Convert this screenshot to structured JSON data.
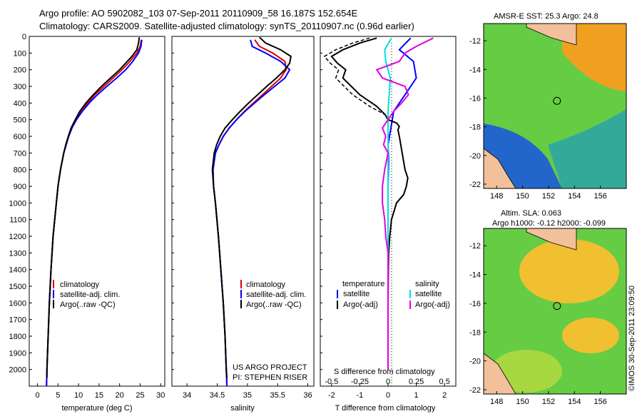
{
  "header": {
    "line1": "Argo profile: AO 5902082_103 07-Sep-2011 20110909_58 16.187S 152.654E",
    "line2": "Climatology: CARS2009. Satellite-adjusted climatology: synTS_20110907.nc (0.96d earlier)"
  },
  "maps": {
    "sst_title": "AMSR-E SST: 25.3 Argo: 24.8",
    "sla_title1": "Altim. SLA: 0.063",
    "sla_title2": "Argo h1000: -0.12 h2000: -0.099",
    "stamp": "©IMOS 30-Sep-2011 23:09:50",
    "lat_ticks": [
      "-12",
      "-14",
      "-16",
      "-18",
      "-20",
      "-22"
    ],
    "lon_ticks": [
      "148",
      "150",
      "152",
      "154",
      "156"
    ],
    "lat_values": [
      -12,
      -14,
      -16,
      -18,
      -20,
      -22
    ],
    "lon_values": [
      148,
      150,
      152,
      154,
      156
    ],
    "lat_range": [
      -22.3,
      -10.8
    ],
    "lon_range": [
      147.0,
      158.0
    ],
    "argo_position": {
      "lat": -16.187,
      "lon": 152.654
    },
    "colors": {
      "sst_warm": "#f0a020",
      "sst_mid": "#66cc44",
      "sst_cool": "#2266cc",
      "land": "#f2c09a"
    }
  },
  "credits": {
    "line1": "US ARGO PROJECT",
    "line2": "PI: STEPHEN RISER"
  },
  "colors": {
    "climatology": "#e00000",
    "satellite": "#0000ff",
    "argo": "#000000",
    "satellite_salinity": "#00e0e0",
    "argo_salinity": "#e000e0"
  },
  "legend_labels": {
    "climatology": "climatology",
    "satellite_adj": "satellite-adj. clim.",
    "argo_raw": "Argo(..raw -QC)",
    "temperature": "temperature",
    "salinity": "salinity",
    "satellite": "satellite",
    "argo_adj": "Argo(-adj)"
  },
  "chart_data": [
    {
      "type": "line",
      "id": "temperature",
      "xlabel": "temperature (deg C)",
      "ylabel": "",
      "xlim": [
        -2,
        31
      ],
      "ylim": [
        2100,
        0
      ],
      "xticks": [
        0,
        5,
        10,
        15,
        20,
        25,
        30
      ],
      "yticks": [
        0,
        100,
        200,
        300,
        400,
        500,
        600,
        700,
        800,
        900,
        1000,
        1100,
        1200,
        1300,
        1400,
        1500,
        1600,
        1700,
        1800,
        1900,
        2000
      ],
      "series": [
        {
          "name": "climatology",
          "depth": [
            20,
            60,
            100,
            150,
            200,
            250,
            300,
            350,
            400,
            450,
            500,
            550,
            600,
            650,
            700,
            800,
            900,
            1000,
            1200,
            1400,
            1600,
            1800,
            2000,
            2100
          ],
          "values": [
            25.3,
            25.0,
            24.2,
            22.5,
            20.6,
            18.4,
            16.2,
            14.0,
            12.2,
            10.6,
            9.4,
            8.4,
            7.6,
            7.0,
            6.4,
            5.6,
            5.0,
            4.6,
            3.8,
            3.3,
            2.9,
            2.6,
            2.3,
            2.2
          ]
        },
        {
          "name": "satellite-adj. clim.",
          "depth": [
            20,
            60,
            100,
            150,
            200,
            250,
            300,
            350,
            400,
            450,
            500,
            550,
            600,
            650,
            700,
            800,
            900,
            1000,
            1200,
            1400,
            1600,
            1800,
            2000,
            2100
          ],
          "values": [
            25.4,
            25.2,
            24.6,
            23.2,
            21.5,
            19.3,
            16.9,
            14.6,
            12.6,
            10.9,
            9.5,
            8.4,
            7.6,
            7.0,
            6.4,
            5.6,
            5.0,
            4.6,
            3.8,
            3.3,
            2.9,
            2.6,
            2.3,
            2.2
          ]
        },
        {
          "name": "Argo(..raw -QC)",
          "depth": [
            5,
            40,
            80,
            120,
            160,
            200,
            250,
            300,
            350,
            400,
            450,
            500,
            550,
            600,
            650,
            700,
            800,
            900,
            1000,
            1200,
            1400,
            1600,
            1800,
            2000,
            2050
          ],
          "values": [
            24.8,
            24.6,
            24.2,
            23.0,
            21.5,
            20.0,
            17.8,
            15.6,
            13.6,
            11.8,
            10.3,
            9.2,
            8.2,
            7.5,
            6.9,
            6.4,
            5.6,
            5.0,
            4.6,
            3.8,
            3.3,
            2.9,
            2.6,
            2.3,
            2.3
          ]
        }
      ]
    },
    {
      "type": "line",
      "id": "salinity",
      "xlabel": "salinity",
      "ylabel": "",
      "xlim": [
        33.75,
        36.1
      ],
      "ylim": [
        2100,
        0
      ],
      "xticks": [
        34,
        34.5,
        35,
        35.5,
        36
      ],
      "series": [
        {
          "name": "climatology",
          "depth": [
            20,
            60,
            100,
            150,
            200,
            250,
            300,
            350,
            400,
            450,
            500,
            550,
            600,
            650,
            700,
            800,
            900,
            1000,
            1200,
            1400,
            1600,
            1800,
            2000,
            2100
          ],
          "values": [
            35.12,
            35.2,
            35.42,
            35.62,
            35.64,
            35.55,
            35.4,
            35.25,
            35.1,
            34.95,
            34.82,
            34.7,
            34.6,
            34.53,
            34.47,
            34.43,
            34.44,
            34.47,
            34.52,
            34.56,
            34.6,
            34.63,
            34.65,
            34.66
          ]
        },
        {
          "name": "satellite-adj. clim.",
          "depth": [
            20,
            60,
            100,
            150,
            200,
            250,
            300,
            350,
            400,
            450,
            500,
            550,
            600,
            650,
            700,
            800,
            900,
            1000,
            1200,
            1400,
            1600,
            1800,
            2000,
            2100
          ],
          "values": [
            35.05,
            35.08,
            35.3,
            35.55,
            35.7,
            35.62,
            35.45,
            35.28,
            35.12,
            34.96,
            34.82,
            34.7,
            34.6,
            34.53,
            34.47,
            34.43,
            34.44,
            34.47,
            34.52,
            34.56,
            34.6,
            34.63,
            34.65,
            34.66
          ]
        },
        {
          "name": "Argo(..raw -QC)",
          "depth": [
            5,
            40,
            80,
            120,
            160,
            200,
            250,
            300,
            350,
            400,
            450,
            500,
            550,
            600,
            650,
            700,
            800,
            900,
            1000,
            1200,
            1400,
            1600,
            1800,
            2000,
            2050
          ],
          "values": [
            35.2,
            35.3,
            35.55,
            35.72,
            35.7,
            35.62,
            35.48,
            35.32,
            35.17,
            35.02,
            34.88,
            34.75,
            34.63,
            34.55,
            34.49,
            34.45,
            34.42,
            34.44,
            34.47,
            34.52,
            34.56,
            34.6,
            34.63,
            34.65,
            34.66
          ]
        }
      ]
    },
    {
      "type": "line",
      "id": "difference",
      "xlabel": "T difference from climatology",
      "xlabel2": "S difference from climatology",
      "xlim": [
        -2.4,
        2.4
      ],
      "ylim": [
        2100,
        0
      ],
      "xticks_bottom": [
        -2,
        -1,
        0,
        1,
        2
      ],
      "xticks_top": [
        -0.5,
        -0.25,
        0,
        0.25,
        0.5
      ],
      "xticks_top_labels": [
        "-0.5",
        "-0.25",
        "0",
        "0.25",
        "0.5"
      ],
      "series": [
        {
          "name": "T satellite",
          "axis": "T",
          "depth": [
            10,
            80,
            150,
            250,
            350,
            450,
            550,
            650,
            750,
            900,
            1100,
            1400,
            1700,
            2000
          ],
          "values": [
            0.8,
            0.4,
            0.9,
            1.0,
            0.6,
            0.2,
            0.1,
            0.0,
            0.02,
            0.0,
            0.0,
            0.0,
            0.0,
            0.0
          ]
        },
        {
          "name": "T Argo(-adj)",
          "axis": "T",
          "depth": [
            10,
            40,
            80,
            120,
            160,
            200,
            250,
            300,
            350,
            420,
            470,
            500,
            520,
            540,
            560,
            600,
            650,
            700,
            750,
            800,
            850,
            900,
            950,
            1000,
            1100,
            1200,
            1300,
            1400,
            1600,
            1800,
            2000
          ],
          "values": [
            -0.4,
            -1.0,
            -1.6,
            -2.0,
            -1.8,
            -1.5,
            -1.6,
            -1.3,
            -1.0,
            -0.4,
            -0.1,
            0.0,
            0.3,
            0.4,
            0.35,
            0.4,
            0.45,
            0.5,
            0.55,
            0.6,
            0.7,
            0.65,
            0.55,
            0.3,
            0.12,
            0.06,
            0.02,
            0.01,
            0.0,
            0.0,
            0.0
          ]
        },
        {
          "name": "S satellite",
          "axis": "S",
          "depth": [
            10,
            80,
            150,
            250,
            350,
            450,
            550,
            650,
            800,
            1000,
            1300,
            1600,
            2000
          ],
          "values": [
            0.03,
            -0.03,
            -0.02,
            0.02,
            0.01,
            0.0,
            0.0,
            0.0,
            0.0,
            0.0,
            0.0,
            0.0,
            0.0
          ]
        },
        {
          "name": "S Argo(-adj)",
          "axis": "S",
          "depth": [
            10,
            60,
            100,
            150,
            200,
            250,
            300,
            350,
            400,
            450,
            500,
            550,
            600,
            650,
            700,
            800,
            900,
            1000,
            1100,
            1200,
            1300,
            1400,
            1600,
            1800,
            2000
          ],
          "values": [
            0.4,
            0.25,
            0.15,
            0.1,
            -0.1,
            -0.05,
            0.15,
            0.18,
            0.12,
            0.05,
            0.0,
            -0.05,
            -0.02,
            -0.04,
            0.0,
            -0.03,
            -0.05,
            -0.05,
            -0.03,
            -0.02,
            0.0,
            0.0,
            0.0,
            0.0,
            0.0
          ]
        }
      ]
    }
  ]
}
